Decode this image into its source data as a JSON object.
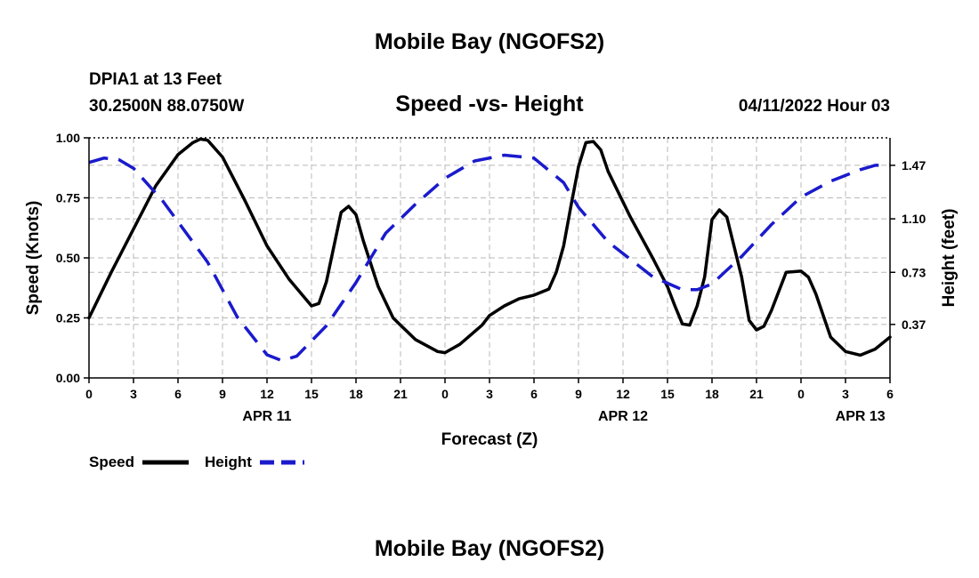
{
  "header": {
    "title": "Mobile Bay (NGOFS2)",
    "station": "DPIA1 at 13 Feet",
    "location": "30.2500N  88.0750W",
    "chart_title": "Speed -vs- Height",
    "timestamp": "04/11/2022 Hour 03"
  },
  "footer": {
    "title": "Mobile Bay (NGOFS2)"
  },
  "chart_data": {
    "type": "line",
    "title": "Speed -vs- Height",
    "xlabel": "Forecast (Z)",
    "ylabel": "Speed (Knots)",
    "y2label": "Height (feet)",
    "x_ticks": [
      0,
      3,
      6,
      9,
      12,
      15,
      18,
      21,
      24,
      27,
      30,
      33,
      36,
      39,
      42,
      45,
      48,
      51,
      54
    ],
    "x_tick_labels": [
      "0",
      "3",
      "6",
      "9",
      "12",
      "15",
      "18",
      "21",
      "0",
      "3",
      "6",
      "9",
      "12",
      "15",
      "18",
      "21",
      "0",
      "3",
      "6"
    ],
    "date_labels": [
      {
        "x": 12,
        "label": "APR 11"
      },
      {
        "x": 36,
        "label": "APR 12"
      },
      {
        "x": 52,
        "label": "APR 13"
      }
    ],
    "xlim": [
      0,
      54
    ],
    "ylim": [
      0,
      1
    ],
    "y_ticks": [
      0,
      0.25,
      0.5,
      0.75,
      1
    ],
    "y_tick_labels": [
      "0.00",
      "0.25",
      "0.50",
      "0.75",
      "1.00"
    ],
    "y2lim": [
      0,
      1.66
    ],
    "y2_ticks": [
      0.37,
      0.73,
      1.1,
      1.47
    ],
    "y2_tick_labels": [
      "0.37",
      "0.73",
      "1.10",
      "1.47"
    ],
    "grid": true,
    "legend_position": "bottom-left",
    "series": [
      {
        "name": "Speed",
        "axis": "left",
        "color": "#000000",
        "style": "solid",
        "x": [
          0,
          1.5,
          3,
          4.5,
          6,
          7,
          7.5,
          8,
          9,
          10.5,
          12,
          13.5,
          15,
          15.5,
          16,
          17,
          17.5,
          18,
          18.5,
          19.5,
          20.5,
          21,
          22,
          23.5,
          24,
          25,
          26.5,
          27,
          28,
          29,
          30,
          31,
          31.5,
          32,
          32.5,
          33,
          33.5,
          34,
          34.5,
          35,
          36.5,
          38,
          39,
          39.5,
          40,
          40.5,
          41,
          41.5,
          42,
          42.5,
          43,
          44,
          44.5,
          45,
          45.5,
          46,
          47,
          48,
          48.5,
          49,
          50,
          51,
          52,
          53,
          54
        ],
        "y": [
          0.25,
          0.44,
          0.62,
          0.8,
          0.93,
          0.98,
          0.995,
          0.99,
          0.92,
          0.74,
          0.55,
          0.41,
          0.3,
          0.31,
          0.4,
          0.69,
          0.715,
          0.68,
          0.57,
          0.38,
          0.25,
          0.22,
          0.16,
          0.11,
          0.105,
          0.14,
          0.22,
          0.26,
          0.3,
          0.33,
          0.345,
          0.37,
          0.44,
          0.55,
          0.72,
          0.88,
          0.98,
          0.985,
          0.95,
          0.86,
          0.67,
          0.5,
          0.38,
          0.3,
          0.225,
          0.22,
          0.3,
          0.42,
          0.66,
          0.7,
          0.67,
          0.42,
          0.24,
          0.2,
          0.215,
          0.28,
          0.44,
          0.445,
          0.42,
          0.35,
          0.17,
          0.11,
          0.095,
          0.12,
          0.17
        ]
      },
      {
        "name": "Height",
        "axis": "right",
        "color": "#1a1acc",
        "style": "dashed",
        "x": [
          0,
          1,
          2,
          3,
          5,
          8,
          10,
          12,
          13,
          14,
          16,
          18,
          20,
          22,
          24,
          26,
          28,
          30,
          32,
          33,
          35,
          38,
          40,
          41,
          42,
          44,
          46,
          48,
          50,
          52,
          53,
          54
        ],
        "y": [
          1.49,
          1.52,
          1.51,
          1.45,
          1.22,
          0.8,
          0.42,
          0.16,
          0.12,
          0.15,
          0.36,
          0.66,
          1.0,
          1.2,
          1.38,
          1.5,
          1.54,
          1.52,
          1.35,
          1.18,
          0.94,
          0.7,
          0.61,
          0.61,
          0.65,
          0.84,
          1.06,
          1.25,
          1.36,
          1.44,
          1.47,
          1.47
        ]
      }
    ]
  }
}
